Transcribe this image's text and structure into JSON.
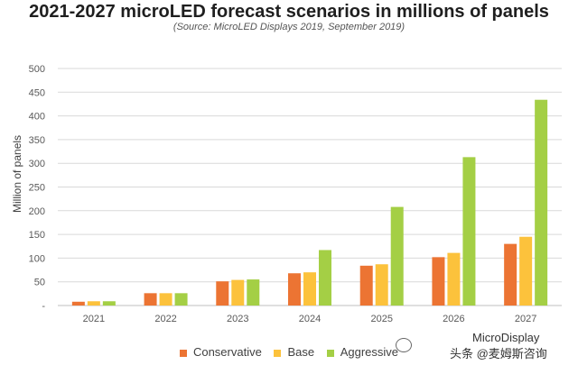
{
  "chart_data": {
    "type": "bar",
    "title": "2021-2027 microLED forecast scenarios in millions of panels",
    "subtitle": "(Source: MicroLED Displays 2019, September 2019)",
    "ylabel": "Million of panels",
    "xlabel": "",
    "categories": [
      "2021",
      "2022",
      "2023",
      "2024",
      "2025",
      "2026",
      "2027"
    ],
    "ylim": [
      0,
      500
    ],
    "yticks": [
      0,
      50,
      100,
      150,
      200,
      250,
      300,
      350,
      400,
      450,
      500
    ],
    "ytick_labels": [
      "-",
      "50",
      "100",
      "150",
      "200",
      "250",
      "300",
      "350",
      "400",
      "450",
      "500"
    ],
    "grid": true,
    "legend_position": "bottom",
    "series": [
      {
        "name": "Conservative",
        "color": "#ec7433",
        "values": [
          8,
          26,
          51,
          68,
          84,
          102,
          130
        ]
      },
      {
        "name": "Base",
        "color": "#fcc23c",
        "values": [
          9,
          26,
          54,
          70,
          87,
          111,
          145
        ]
      },
      {
        "name": "Aggressive",
        "color": "#a4cf45",
        "values": [
          9,
          26,
          55,
          117,
          208,
          313,
          434
        ]
      }
    ]
  },
  "watermark": {
    "line1": "MicroDisplay",
    "line2": "头条 @麦姆斯咨询"
  }
}
